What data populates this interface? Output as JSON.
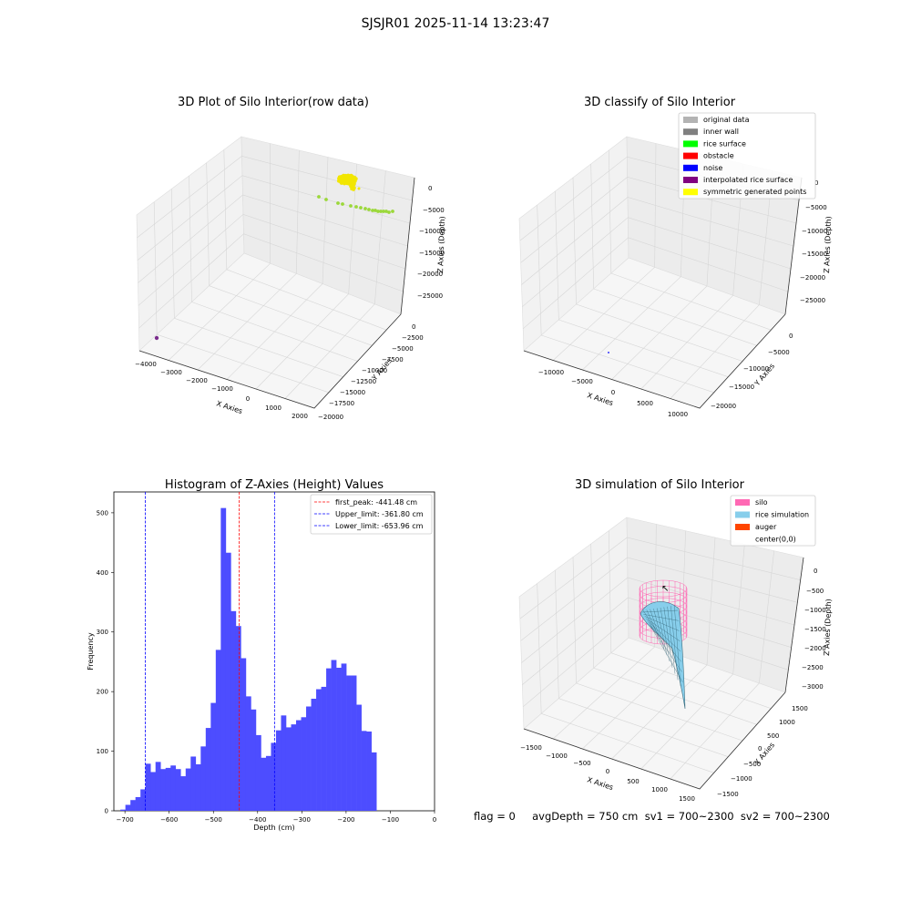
{
  "suptitle": "SJSJR01 2025-11-14 13:23:47",
  "colors": {
    "hist_bar": "#4d4dff",
    "rice": "#f2e600",
    "rice_green": "#9bd83a",
    "obstacle_purple": "#7a2c8c",
    "silo": "#ff69b4",
    "rice_sim": "#87ceeb",
    "auger": "#ff4500",
    "first_peak": "#ff0000",
    "limits": "#0000ff"
  },
  "panels": {
    "raw": {
      "title": "3D Plot of Silo Interior(row data)",
      "xlabel": "X Axies",
      "ylabel": "Y Axies",
      "zlabel": "Z Axies (Depth)",
      "xticks": [
        "−4000",
        "−3000",
        "−2000",
        "−1000",
        "0",
        "1000",
        "2000"
      ],
      "yticks": [
        "0",
        "−2500",
        "−5000",
        "−7500",
        "−10000",
        "−12500",
        "−15000",
        "−17500",
        "−20000"
      ],
      "zticks": [
        "0",
        "−5000",
        "−10000",
        "−15000",
        "−20000",
        "−25000"
      ]
    },
    "classify": {
      "title": "3D classify of Silo Interior",
      "xlabel": "X Axies",
      "ylabel": "Y Axies",
      "zlabel": "Z Axies (Depth)",
      "xticks": [
        "−10000",
        "−5000",
        "0",
        "5000",
        "10000"
      ],
      "yticks": [
        "0",
        "−5000",
        "−10000",
        "−15000",
        "−20000"
      ],
      "zticks": [
        "0",
        "−5000",
        "−10000",
        "−15000",
        "−20000",
        "−25000"
      ],
      "legend": [
        {
          "label": "original data",
          "color": "#b3b3b3"
        },
        {
          "label": "inner wall",
          "color": "#808080"
        },
        {
          "label": "rice surface",
          "color": "#00ff00"
        },
        {
          "label": "obstacle",
          "color": "#ff0000"
        },
        {
          "label": "noise",
          "color": "#0000ff"
        },
        {
          "label": "interpolated rice surface",
          "color": "#800080"
        },
        {
          "label": "symmetric generated points",
          "color": "#ffff00"
        }
      ]
    },
    "simulation": {
      "title": "3D simulation of Silo Interior",
      "xlabel": "X Axies",
      "ylabel": "Y Axies",
      "zlabel": "Z Axies (Depth)",
      "xticks": [
        "−1500",
        "−1000",
        "−500",
        "0",
        "500",
        "1000",
        "1500"
      ],
      "yticks": [
        "1500",
        "1000",
        "500",
        "0",
        "−500",
        "−1000",
        "−1500"
      ],
      "zticks": [
        "0",
        "−500",
        "−1000",
        "−1500",
        "−2000",
        "−2500",
        "−3000"
      ],
      "legend": [
        {
          "label": "silo",
          "color": "#ff69b4"
        },
        {
          "label": "rice simulation",
          "color": "#87ceeb"
        },
        {
          "label": "auger",
          "color": "#ff4500"
        },
        {
          "label": "center(0,0)",
          "color": "#ffffff"
        }
      ]
    }
  },
  "status_line": "flag = 0     avgDepth = 750 cm  sv1 = 700~2300  sv2 = 700~2300",
  "chart_data": {
    "type": "bar",
    "title": "Histogram of Z-Axies (Height) Values",
    "xlabel": "Depth (cm)",
    "ylabel": "Frequency",
    "xlim": [
      -725,
      0
    ],
    "ylim": [
      0,
      535
    ],
    "xticks": [
      -700,
      -600,
      -500,
      -400,
      -300,
      -200,
      -100,
      0
    ],
    "yticks": [
      0,
      100,
      200,
      300,
      400,
      500
    ],
    "xtick_labels": [
      "−700",
      "−600",
      "−500",
      "−400",
      "−300",
      "−200",
      "−100",
      "0"
    ],
    "ytick_labels": [
      "0",
      "100",
      "200",
      "300",
      "400",
      "500"
    ],
    "bin_start": -710.3,
    "bin_width": 11.35,
    "values": [
      2,
      10,
      18,
      23,
      36,
      79,
      65,
      82,
      70,
      72,
      76,
      70,
      58,
      71,
      91,
      78,
      108,
      139,
      181,
      270,
      508,
      433,
      335,
      310,
      256,
      192,
      170,
      127,
      89,
      92,
      114,
      135,
      160,
      140,
      145,
      152,
      157,
      175,
      188,
      204,
      208,
      239,
      253,
      240,
      247,
      227,
      227,
      178,
      134,
      133,
      98
    ],
    "vlines": [
      {
        "x": -441.48,
        "label": "first_peak: -441.48 cm",
        "color": "#ff0000"
      },
      {
        "x": -361.8,
        "label": "Upper_limit: -361.80 cm",
        "color": "#0000ff"
      },
      {
        "x": -653.96,
        "label": "Lower_limit: -653.96 cm",
        "color": "#0000ff"
      }
    ]
  }
}
